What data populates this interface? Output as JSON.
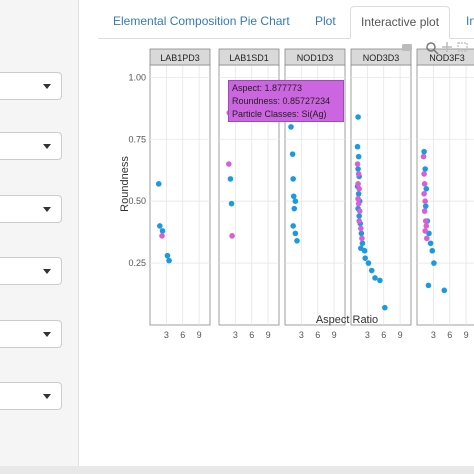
{
  "tabs": [
    {
      "label": "Elemental Composition Pie Chart"
    },
    {
      "label": "Plot"
    },
    {
      "label": "Interactive plot"
    },
    {
      "label": "In"
    }
  ],
  "colors": {
    "si": "#1a9be0",
    "siag": "#d95fd9",
    "tooltip": "#cc66e0"
  },
  "chart_data": {
    "type": "scatter",
    "xlabel": "Aspect Ratio",
    "ylabel": "Roundness",
    "yticks": [
      "1.00",
      "0.75",
      "0.50",
      "0.25"
    ],
    "xticks": [
      "3",
      "6",
      "9"
    ],
    "ylim": [
      0,
      1.05
    ],
    "xlim": [
      0,
      11
    ],
    "grid": true,
    "panels": [
      {
        "name": "LAB1PD3",
        "si": [
          [
            1.6,
            0.57
          ],
          [
            1.8,
            0.4
          ],
          [
            2.3,
            0.38
          ],
          [
            3.2,
            0.28
          ],
          [
            3.5,
            0.26
          ]
        ],
        "siag": [
          [
            2.2,
            0.36
          ]
        ]
      },
      {
        "name": "LAB1SD1",
        "si": [
          [
            2.1,
            0.59
          ],
          [
            2.3,
            0.49
          ]
        ],
        "siag": [
          [
            1.88,
            0.857
          ],
          [
            1.8,
            0.65
          ],
          [
            2.4,
            0.36
          ]
        ]
      },
      {
        "name": "NOD1D3",
        "si": [
          [
            1.1,
            0.8
          ],
          [
            1.4,
            0.69
          ],
          [
            1.5,
            0.59
          ],
          [
            1.6,
            0.52
          ],
          [
            1.9,
            0.5
          ],
          [
            1.5,
            0.4
          ],
          [
            1.9,
            0.37
          ],
          [
            2.2,
            0.34
          ],
          [
            1.7,
            0.47
          ]
        ],
        "siag": []
      },
      {
        "name": "NOD3D3",
        "si": [
          [
            1.3,
            0.84
          ],
          [
            1.2,
            0.72
          ],
          [
            1.4,
            0.68
          ],
          [
            1.3,
            0.63
          ],
          [
            1.5,
            0.6
          ],
          [
            1.2,
            0.56
          ],
          [
            1.4,
            0.53
          ],
          [
            1.6,
            0.5
          ],
          [
            1.3,
            0.47
          ],
          [
            1.5,
            0.44
          ],
          [
            1.7,
            0.41
          ],
          [
            1.9,
            0.37
          ],
          [
            2.1,
            0.33
          ],
          [
            2.5,
            0.3
          ],
          [
            3.2,
            0.25
          ],
          [
            3.8,
            0.22
          ],
          [
            4.4,
            0.19
          ],
          [
            5.3,
            0.18
          ],
          [
            6.2,
            0.07
          ],
          [
            1.8,
            0.31
          ],
          [
            2.6,
            0.27
          ]
        ],
        "siag": [
          [
            1.2,
            0.65
          ],
          [
            1.4,
            0.61
          ],
          [
            1.3,
            0.57
          ],
          [
            1.5,
            0.55
          ],
          [
            1.3,
            0.51
          ],
          [
            1.6,
            0.46
          ],
          [
            1.5,
            0.42
          ],
          [
            1.8,
            0.39
          ],
          [
            2.0,
            0.35
          ],
          [
            1.4,
            0.49
          ]
        ]
      },
      {
        "name": "NOD3F3",
        "si": [
          [
            1.3,
            0.7
          ],
          [
            1.5,
            0.63
          ],
          [
            1.7,
            0.55
          ],
          [
            1.6,
            0.48
          ],
          [
            1.9,
            0.42
          ],
          [
            2.2,
            0.37
          ],
          [
            2.5,
            0.33
          ],
          [
            3.1,
            0.25
          ],
          [
            2.8,
            0.3
          ],
          [
            2.1,
            0.16
          ],
          [
            5.0,
            0.14
          ]
        ],
        "siag": [
          [
            1.2,
            0.68
          ],
          [
            1.3,
            0.61
          ],
          [
            1.4,
            0.57
          ],
          [
            1.3,
            0.53
          ],
          [
            1.5,
            0.5
          ],
          [
            1.4,
            0.46
          ],
          [
            1.6,
            0.42
          ],
          [
            1.5,
            0.38
          ],
          [
            1.8,
            0.35
          ],
          [
            1.7,
            0.4
          ]
        ]
      }
    ]
  },
  "tooltip": {
    "aspect": "Aspect:  1.877773",
    "roundness": "Roundness:  0.85727234",
    "particle": "Particle Classes:  Si(Ag)"
  }
}
